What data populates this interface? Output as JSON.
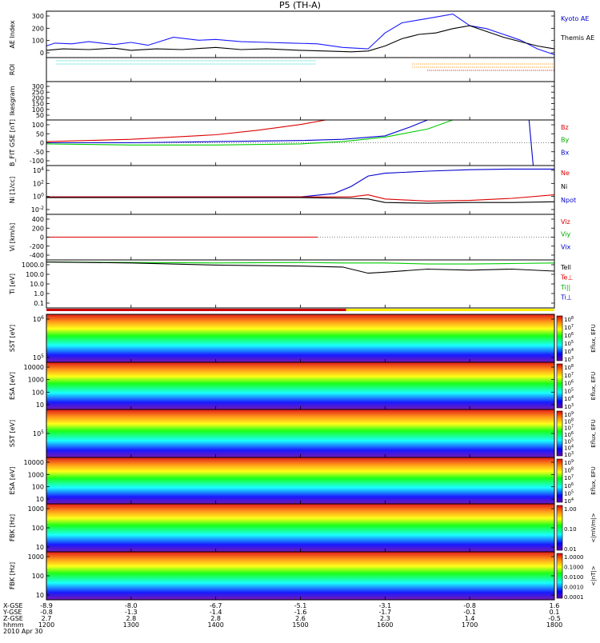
{
  "title": "P5 (TH-A)",
  "date": "2010 Apr 30",
  "chart_data": {
    "type": "line",
    "title": "P5 (TH-A)",
    "time_range": [
      "12:00",
      "18:00"
    ],
    "x_ticks": [
      "1200",
      "1300",
      "1400",
      "1500",
      "1600",
      "1700",
      "1800"
    ],
    "ephemeris": {
      "labels": [
        "X-GSE",
        "Y-GSE",
        "Z-GSE",
        "hhmm",
        "2010 Apr 30"
      ],
      "x_gse": [
        "-8.9",
        "-8.0",
        "-6.7",
        "-5.1",
        "-3.1",
        "-0.8",
        "1.6"
      ],
      "y_gse": [
        "-0.8",
        "-1.3",
        "-1.4",
        "-1.6",
        "-1.7",
        "-0.1",
        "0.1"
      ],
      "z_gse": [
        "2.7",
        "2.8",
        "2.8",
        "2.6",
        "2.3",
        "1.4",
        "-0.5"
      ]
    },
    "panels": [
      {
        "name": "ae",
        "ylabel": "AE Index",
        "yticks": [
          "300",
          "200",
          "100",
          "0"
        ],
        "ylim": [
          0,
          320
        ],
        "legend": [
          {
            "label": "Kyoto AE",
            "color": "#0000cc"
          },
          {
            "label": "Themis AE",
            "color": "#000000"
          }
        ],
        "series": [
          {
            "name": "Kyoto AE",
            "color": "#1a1aff",
            "x": [
              0,
              0.1,
              0.3,
              0.5,
              0.8,
              1.0,
              1.2,
              1.5,
              1.8,
              2.0,
              2.3,
              2.6,
              2.9,
              3.2,
              3.5,
              3.8,
              4.0,
              4.2,
              4.4,
              4.6,
              4.8,
              5.0,
              5.2,
              5.4,
              5.6,
              5.8,
              6.0
            ],
            "y": [
              80,
              100,
              95,
              110,
              90,
              105,
              85,
              140,
              120,
              125,
              110,
              105,
              100,
              95,
              70,
              60,
              170,
              240,
              260,
              280,
              300,
              220,
              200,
              160,
              120,
              60,
              20
            ]
          },
          {
            "name": "Themis AE",
            "color": "#000000",
            "x": [
              0,
              0.2,
              0.5,
              0.8,
              1.0,
              1.3,
              1.6,
              2.0,
              2.3,
              2.6,
              3.0,
              3.3,
              3.6,
              3.8,
              4.0,
              4.2,
              4.4,
              4.6,
              4.8,
              5.0,
              5.2,
              5.4,
              5.6,
              5.8,
              6.0
            ],
            "y": [
              50,
              60,
              55,
              65,
              50,
              60,
              55,
              70,
              55,
              60,
              50,
              45,
              40,
              45,
              80,
              130,
              160,
              170,
              200,
              220,
              180,
              140,
              110,
              80,
              60
            ]
          }
        ]
      },
      {
        "name": "roi",
        "ylabel": "ROI",
        "yticks": [],
        "legend": []
      },
      {
        "name": "kesgram",
        "ylabel": "Ikesgram",
        "yticks": [
          "300",
          "250",
          "200",
          "150",
          "100",
          "50"
        ],
        "legend": []
      },
      {
        "name": "bfit",
        "ylabel": "B_FIT GSE [nT]",
        "yticks": [
          "100",
          "50",
          "0",
          "-50",
          "-100"
        ],
        "ylim": [
          -100,
          100
        ],
        "legend": [
          {
            "label": "Bz",
            "color": "#dd0000"
          },
          {
            "label": "By",
            "color": "#00aa00"
          },
          {
            "label": "Bx",
            "color": "#0000cc"
          }
        ],
        "series": [
          {
            "name": "Bz",
            "color": "#dd0000",
            "x": [
              0,
              1,
              2,
              2.5,
              3.0,
              3.3
            ],
            "y": [
              5,
              15,
              35,
              55,
              80,
              100
            ]
          },
          {
            "name": "By",
            "color": "#00cc00",
            "x": [
              0,
              1,
              2,
              3,
              3.5,
              4.0,
              4.5,
              4.8
            ],
            "y": [
              -5,
              -10,
              -10,
              -5,
              5,
              25,
              60,
              100
            ]
          },
          {
            "name": "Bx",
            "color": "#0000cc",
            "x": [
              0,
              1,
              2,
              3,
              3.5,
              4.0,
              4.3,
              4.5,
              5.5,
              5.7,
              5.75,
              5.8,
              6.0
            ],
            "y": [
              0,
              0,
              5,
              10,
              15,
              30,
              70,
              100,
              100,
              100,
              -100,
              -100,
              -100
            ]
          }
        ]
      },
      {
        "name": "density",
        "ylabel": "Ni [1/cc]",
        "yticks": [
          "10^4",
          "10^2",
          "10^0",
          "10^-2"
        ],
        "ylim": [
          -2.5,
          4.5
        ],
        "legend": [
          {
            "label": "Ne",
            "color": "#dd0000"
          },
          {
            "label": "Ni",
            "color": "#000000"
          },
          {
            "label": "Npot",
            "color": "#0000cc"
          }
        ],
        "series": [
          {
            "name": "Npot",
            "color": "#0000cc",
            "x": [
              0,
              1,
              2,
              3,
              3.4,
              3.6,
              3.8,
              4.0,
              4.5,
              5.0,
              5.5,
              6.0
            ],
            "y": [
              0,
              0,
              0,
              0,
              0.5,
              1.5,
              3,
              3.4,
              3.7,
              3.9,
              4.0,
              4.0
            ]
          },
          {
            "name": "Ne",
            "color": "#dd0000",
            "x": [
              0,
              1,
              2,
              3,
              3.6,
              3.8,
              4.0,
              4.5,
              5.0,
              5.5,
              6.0
            ],
            "y": [
              0,
              0,
              0,
              0,
              0,
              0.3,
              -0.3,
              -0.6,
              -0.5,
              -0.2,
              0.3
            ]
          },
          {
            "name": "Ni",
            "color": "#000000",
            "x": [
              0,
              1,
              2,
              3,
              3.6,
              3.8,
              4.0,
              4.5,
              5.0,
              5.5,
              6.0
            ],
            "y": [
              -0.1,
              -0.1,
              -0.1,
              -0.1,
              -0.2,
              -0.3,
              -0.8,
              -0.9,
              -0.8,
              -0.8,
              -0.7
            ]
          }
        ]
      },
      {
        "name": "velocity",
        "ylabel": "Vi [km/s]",
        "yticks": [
          "400",
          "200",
          "0",
          "-200",
          "-400"
        ],
        "ylim": [
          -480,
          480
        ],
        "legend": [
          {
            "label": "Viz",
            "color": "#dd0000"
          },
          {
            "label": "Viy",
            "color": "#00aa00"
          },
          {
            "label": "Vix",
            "color": "#0000cc"
          }
        ],
        "series": [
          {
            "name": "Vix",
            "color": "#0000cc",
            "x": [
              0,
              1,
              2,
              3.2
            ],
            "y": [
              0,
              0,
              0,
              0
            ]
          },
          {
            "name": "Viy",
            "color": "#00cc00",
            "x": [
              0,
              1,
              2,
              3.2
            ],
            "y": [
              0,
              0,
              0,
              0
            ]
          },
          {
            "name": "Viz",
            "color": "#dd0000",
            "x": [
              0,
              1,
              2,
              3.2
            ],
            "y": [
              0,
              0,
              0,
              0
            ]
          }
        ]
      },
      {
        "name": "temperature",
        "ylabel": "Ti [eV]",
        "yticks": [
          "1000.0",
          "100.0",
          "10.0",
          "1.0",
          "0.1"
        ],
        "ylim": [
          -1.2,
          3.5
        ],
        "legend": [
          {
            "label": "Tell",
            "color": "#000000"
          },
          {
            "label": "Te⊥",
            "color": "#dd0000"
          },
          {
            "label": "Ti||",
            "color": "#00aa00"
          },
          {
            "label": "Ti⊥",
            "color": "#0000cc"
          }
        ],
        "series": [
          {
            "name": "Ti||",
            "color": "#00cc00",
            "x": [
              0,
              1,
              2,
              3,
              3.5,
              4,
              4.5,
              5,
              5.5,
              6.0
            ],
            "y": [
              3.3,
              3.25,
              3.2,
              3.25,
              3.2,
              3.2,
              3.1,
              3.1,
              3.15,
              3.2
            ]
          },
          {
            "name": "Tell",
            "color": "#000000",
            "x": [
              0,
              1,
              2,
              3,
              3.5,
              3.8,
              4,
              4.5,
              5,
              5.5,
              6.0
            ],
            "y": [
              3.3,
              3.2,
              3.0,
              2.9,
              2.8,
              2.2,
              2.3,
              2.6,
              2.5,
              2.6,
              2.4
            ]
          }
        ]
      },
      {
        "name": "sst-ion",
        "ylabel": "SST [eV]",
        "yticks": [
          "10^6",
          "10^5"
        ],
        "cbar_label": "Eflux, EFU",
        "cbar_ticks": [
          "10^8",
          "10^7",
          "10^6",
          "10^5",
          "10^4",
          "10^3"
        ]
      },
      {
        "name": "esa-ion",
        "ylabel": "ESA [eV]",
        "yticks": [
          "10000",
          "1000",
          "100",
          "10"
        ],
        "cbar_label": "Eflux, EFU",
        "cbar_ticks": [
          "10^8",
          "10^7",
          "10^6",
          "10^5",
          "10^4",
          "10^3"
        ]
      },
      {
        "name": "sst-electron",
        "ylabel": "SST [eV]",
        "yticks": [
          "10^5"
        ],
        "cbar_label": "Eflux, EFU",
        "cbar_ticks": [
          "10^9",
          "10^8",
          "10^7",
          "10^6",
          "10^5",
          "10^4",
          "10^3"
        ]
      },
      {
        "name": "esa-electron",
        "ylabel": "ESA [eV]",
        "yticks": [
          "10000",
          "1000",
          "100",
          "10"
        ],
        "cbar_label": "Eflux, EFU",
        "cbar_ticks": [
          "10^9",
          "10^8",
          "10^7",
          "10^6",
          "10^5",
          "10^4"
        ]
      },
      {
        "name": "fbk-e",
        "ylabel": "FBK [Hz]",
        "yticks": [
          "1000",
          "100",
          "10"
        ],
        "cbar_label": "<|mV/m|>",
        "cbar_ticks": [
          "1.00",
          "0.10",
          "0.01"
        ]
      },
      {
        "name": "fbk-b",
        "ylabel": "FBK [Hz]",
        "yticks": [
          "1000",
          "100",
          "10"
        ],
        "cbar_label": "<|nT|>",
        "cbar_ticks": [
          "1.0000",
          "0.1000",
          "0.0100",
          "0.0010",
          "0.0001"
        ]
      }
    ]
  }
}
